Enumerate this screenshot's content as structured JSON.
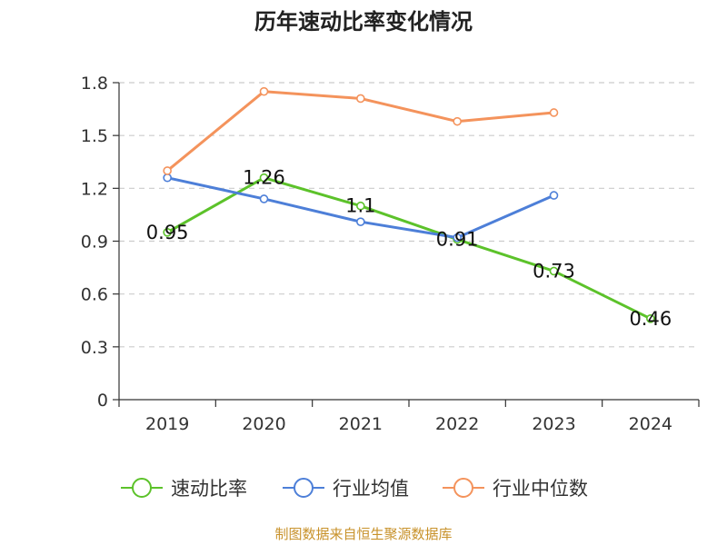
{
  "chart_data": {
    "type": "line",
    "title": "历年速动比率变化情况",
    "categories": [
      "2019",
      "2020",
      "2021",
      "2022",
      "2023",
      "2024"
    ],
    "ylim": [
      0,
      1.8
    ],
    "yticks": [
      "0",
      "0.3",
      "0.6",
      "0.9",
      "1.2",
      "1.5",
      "1.8"
    ],
    "grid": true,
    "legend_position": "bottom-center",
    "series": [
      {
        "name": "速动比率",
        "color": "#5cc22a",
        "values": [
          0.95,
          1.26,
          1.1,
          0.91,
          0.73,
          0.46
        ],
        "labels": [
          "0.95",
          "1.26",
          "1.1",
          "0.91",
          "0.73",
          "0.46"
        ]
      },
      {
        "name": "行业均值",
        "color": "#4d7fd8",
        "values": [
          1.26,
          1.14,
          1.01,
          0.92,
          1.16,
          null
        ]
      },
      {
        "name": "行业中位数",
        "color": "#f4935c",
        "values": [
          1.3,
          1.75,
          1.71,
          1.58,
          1.63,
          null
        ]
      }
    ]
  },
  "footer": {
    "source": "制图数据来自恒生聚源数据库"
  }
}
